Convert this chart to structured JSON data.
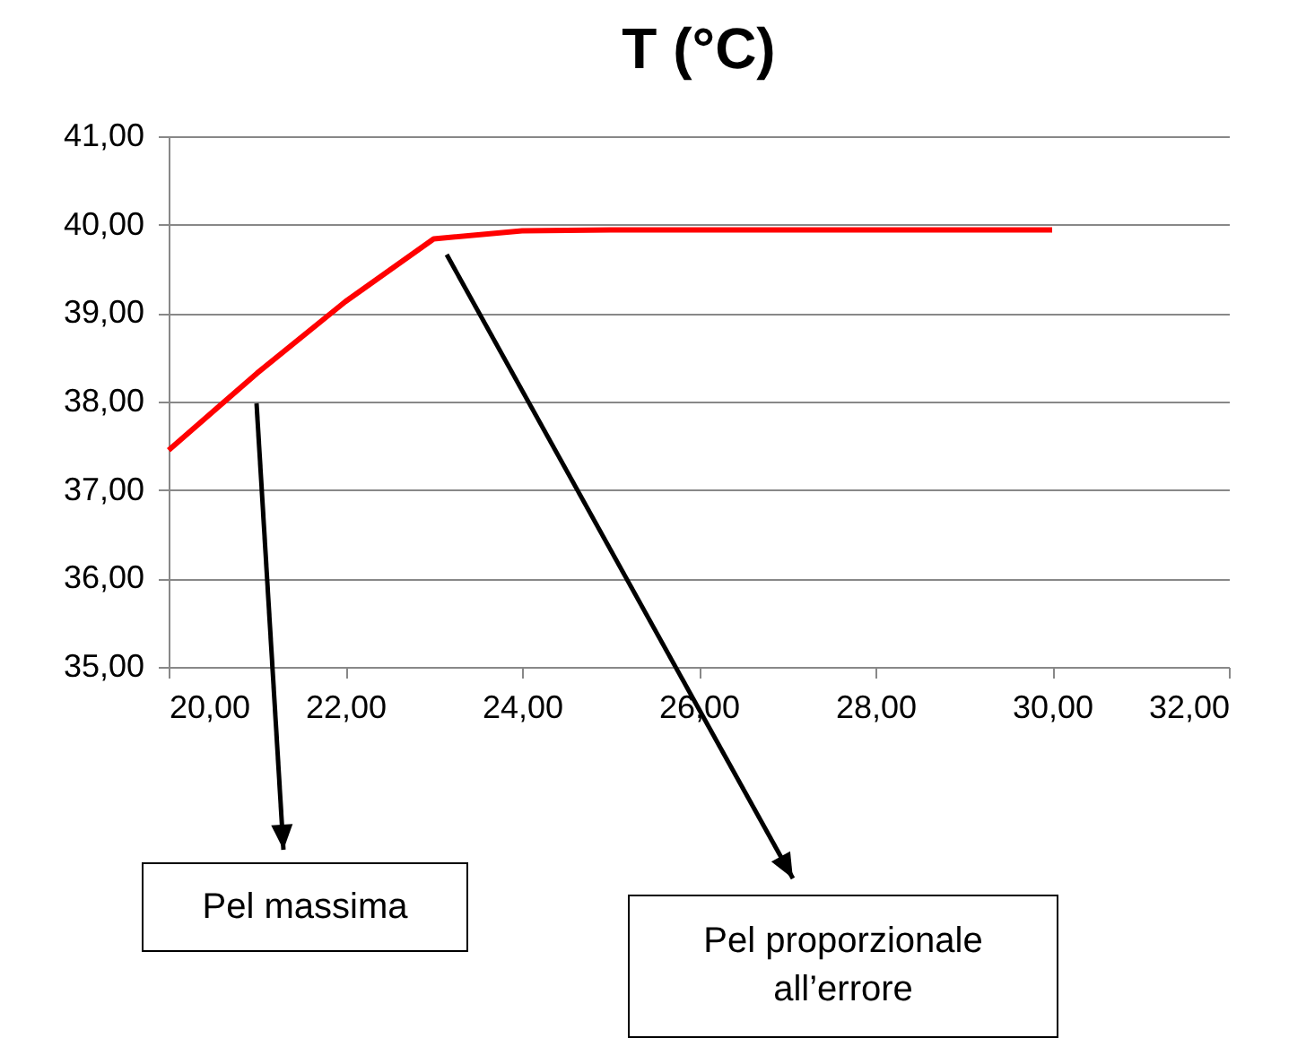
{
  "chart_data": {
    "type": "line",
    "title": "T (°C)",
    "x": [
      20,
      21,
      22,
      23,
      24,
      25,
      26,
      27,
      28,
      29,
      30
    ],
    "series": [
      {
        "color": "#ff0000",
        "values": [
          37.45,
          38.32,
          39.13,
          39.84,
          39.93,
          39.94,
          39.94,
          39.94,
          39.94,
          39.94,
          39.94
        ]
      }
    ],
    "xlim": [
      20,
      32
    ],
    "xticks": [
      {
        "value": 20,
        "label": "20,00"
      },
      {
        "value": 22,
        "label": "22,00"
      },
      {
        "value": 24,
        "label": "24,00"
      },
      {
        "value": 26,
        "label": "26,00"
      },
      {
        "value": 28,
        "label": "28,00"
      },
      {
        "value": 30,
        "label": "30,00"
      },
      {
        "value": 32,
        "label": "32,00"
      }
    ],
    "ylim": [
      35,
      41
    ],
    "yticks": [
      {
        "value": 35,
        "label": "35,00"
      },
      {
        "value": 36,
        "label": "36,00"
      },
      {
        "value": 37,
        "label": "37,00"
      },
      {
        "value": 38,
        "label": "38,00"
      },
      {
        "value": 39,
        "label": "39,00"
      },
      {
        "value": 40,
        "label": "40,00"
      },
      {
        "value": 41,
        "label": "41,00"
      }
    ],
    "grid": "y",
    "line_style": "solid",
    "annotations": [
      "Pel massima",
      "Pel proporzionale all’errore"
    ]
  }
}
